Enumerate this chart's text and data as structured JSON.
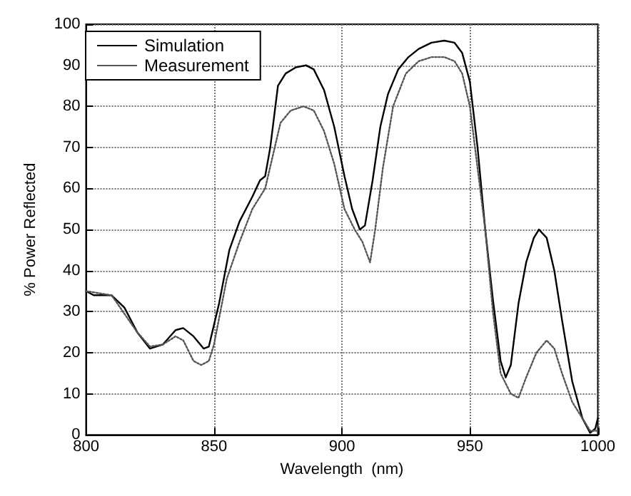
{
  "chart_data": {
    "type": "line",
    "xlabel": "Wavelength  (nm)",
    "ylabel": "% Power Reflected",
    "xlim": [
      800,
      1000
    ],
    "xticks": [
      800,
      850,
      900,
      950,
      1000
    ],
    "ylim": [
      0,
      100
    ],
    "yticks": [
      0,
      10,
      20,
      30,
      40,
      50,
      60,
      70,
      80,
      90,
      100
    ],
    "grid": true,
    "legend": "top left",
    "marker": "none",
    "series": [
      {
        "name": "Simulation",
        "color": "#000000",
        "line_style": "solid",
        "x": [
          800,
          803,
          810,
          815,
          820,
          825,
          830,
          835,
          838,
          842,
          846,
          848,
          852,
          856,
          860,
          865,
          868,
          870,
          872,
          875,
          878,
          882,
          886,
          889,
          893,
          897,
          901,
          904,
          907,
          909,
          912,
          915,
          918,
          922,
          926,
          930,
          935,
          940,
          944,
          947,
          950,
          953,
          956,
          959,
          962,
          964,
          966,
          969,
          972,
          975,
          977,
          980,
          983,
          986,
          990,
          994,
          997,
          999,
          1000
        ],
        "values": [
          35,
          34,
          34,
          31,
          25,
          21,
          22,
          25.5,
          26,
          24,
          21,
          21.5,
          32,
          45,
          52,
          58,
          62,
          63,
          70,
          85,
          88,
          89.5,
          90,
          89,
          84,
          75,
          63,
          55,
          50,
          51,
          62,
          75,
          83,
          89,
          92,
          94,
          95.5,
          96,
          95.5,
          93,
          86,
          70,
          50,
          33,
          18,
          14,
          17,
          32,
          42,
          48,
          50,
          48,
          40,
          28,
          13,
          4,
          0.5,
          1.5,
          4
        ]
      },
      {
        "name": "Measurement",
        "color": "#555555",
        "line_style": "dotted",
        "x": [
          800,
          810,
          820,
          825,
          830,
          835,
          838,
          842,
          845,
          848,
          850,
          855,
          860,
          865,
          870,
          873,
          876,
          880,
          885,
          889,
          893,
          897,
          901,
          905,
          908,
          911,
          913,
          916,
          920,
          925,
          930,
          935,
          940,
          944,
          947,
          950,
          953,
          956,
          959,
          962,
          966,
          969,
          972,
          976,
          980,
          983,
          986,
          990,
          994,
          997,
          1000
        ],
        "values": [
          35,
          34,
          25,
          21.5,
          22,
          24,
          23,
          18,
          17,
          18,
          22,
          38,
          47,
          55,
          60,
          68,
          76,
          79,
          80,
          79,
          74,
          66,
          55,
          50,
          47,
          42,
          50,
          65,
          80,
          88,
          91,
          92,
          92,
          91,
          88,
          80,
          65,
          50,
          30,
          15,
          10,
          9,
          14,
          20,
          23,
          21,
          15,
          8,
          4,
          1,
          1
        ]
      }
    ]
  }
}
